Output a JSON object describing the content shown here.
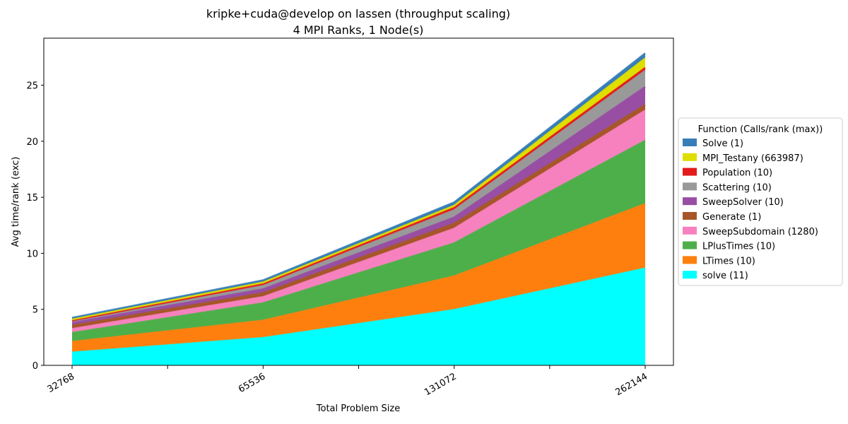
{
  "chart_data": {
    "type": "area",
    "stacked": true,
    "title": "kripke+cuda@develop on lassen (throughput scaling)",
    "subtitle": "4 MPI Ranks, 1 Node(s)",
    "xlabel": "Total Problem Size",
    "ylabel": "Avg time/rank (exc)",
    "x": [
      32768,
      65536,
      131072,
      262144
    ],
    "x_tick_labels": [
      "32768",
      "65536",
      "131072",
      "262144"
    ],
    "xlim": [
      32768,
      262144
    ],
    "x_scale": "log2",
    "ylim": [
      0,
      29.2
    ],
    "y_ticks": [
      0,
      5,
      10,
      15,
      20,
      25
    ],
    "y_tick_labels": [
      "0",
      "5",
      "10",
      "15",
      "20",
      "25"
    ],
    "grid": false,
    "legend": {
      "title": "Function (Calls/rank (max))",
      "placement": "right"
    },
    "series": [
      {
        "name": "solve (11)",
        "color": "#00ffff",
        "values": [
          1.15,
          2.45,
          4.95,
          8.65
        ]
      },
      {
        "name": "LTimes (10)",
        "color": "#ff7f0e",
        "values": [
          0.95,
          1.55,
          3.0,
          5.75
        ]
      },
      {
        "name": "LPlusTimes (10)",
        "color": "#4daf4a",
        "values": [
          0.8,
          1.55,
          2.95,
          5.65
        ]
      },
      {
        "name": "SweepSubdomain (1280)",
        "color": "#f781bf",
        "values": [
          0.35,
          0.55,
          1.3,
          2.7
        ]
      },
      {
        "name": "Generate (1)",
        "color": "#a65628",
        "values": [
          0.3,
          0.35,
          0.45,
          0.5
        ]
      },
      {
        "name": "SweepSolver (10)",
        "color": "#984ea3",
        "values": [
          0.25,
          0.35,
          0.55,
          1.6
        ]
      },
      {
        "name": "Scattering (10)",
        "color": "#999999",
        "values": [
          0.15,
          0.35,
          0.65,
          1.45
        ]
      },
      {
        "name": "Population (10)",
        "color": "#e41a1c",
        "values": [
          0.05,
          0.1,
          0.2,
          0.25
        ]
      },
      {
        "name": "MPI_Testany (663987)",
        "color": "#dede00",
        "values": [
          0.1,
          0.15,
          0.2,
          0.85
        ]
      },
      {
        "name": "Solve (1)",
        "color": "#377eb8",
        "values": [
          0.15,
          0.2,
          0.3,
          0.45
        ]
      }
    ]
  }
}
